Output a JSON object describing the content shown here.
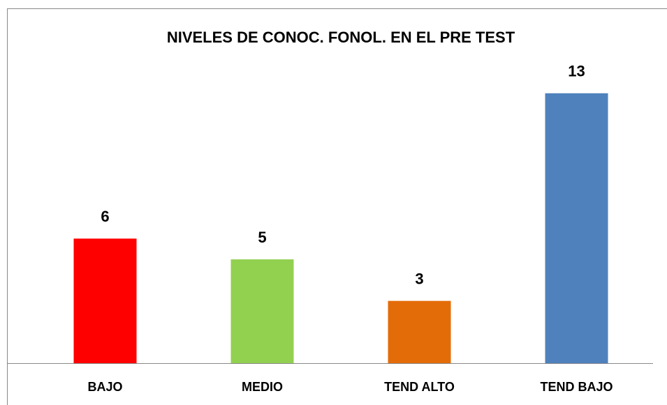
{
  "chart_data": {
    "type": "bar",
    "title": "NIVELES DE CONOC. FONOL. EN EL PRE TEST",
    "categories": [
      "BAJO",
      "MEDIO",
      "TEND ALTO",
      "TEND BAJO"
    ],
    "values": [
      6,
      5,
      3,
      13
    ],
    "colors": [
      "#ff0000",
      "#92d050",
      "#e36c09",
      "#4f81bd"
    ],
    "ylim": [
      0,
      14
    ]
  }
}
